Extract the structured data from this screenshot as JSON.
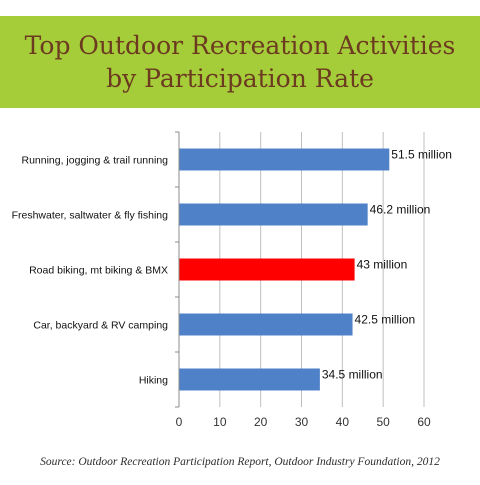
{
  "banner": {
    "title": "Top Outdoor Recreation Activities\nby Participation Rate",
    "background_color": "#a5cd3a",
    "title_color": "#6b3a1f"
  },
  "source_text": "Source: Outdoor Recreation Participation Report, Outdoor Industry Foundation, 2012",
  "chart_data": {
    "type": "bar",
    "orientation": "horizontal",
    "title": "Top Outdoor Recreation Activities by Participation Rate",
    "xlabel": "",
    "ylabel": "",
    "xlim": [
      0,
      60
    ],
    "x_ticks": [
      0,
      10,
      20,
      30,
      40,
      50,
      60
    ],
    "grid": "vertical",
    "legend": "none",
    "categories": [
      "Running, jogging & trail running",
      "Freshwater, saltwater & fly fishing",
      "Road biking, mt biking & BMX",
      "Car, backyard & RV camping",
      "Hiking"
    ],
    "values": [
      51.5,
      46.2,
      43,
      42.5,
      34.5
    ],
    "data_labels": [
      "51.5 million",
      "46.2 million",
      "43 million",
      "42.5 million",
      "34.5 million"
    ],
    "bar_colors": [
      "#4f81c9",
      "#4f81c9",
      "#ff0000",
      "#4f81c9",
      "#4f81c9"
    ]
  }
}
